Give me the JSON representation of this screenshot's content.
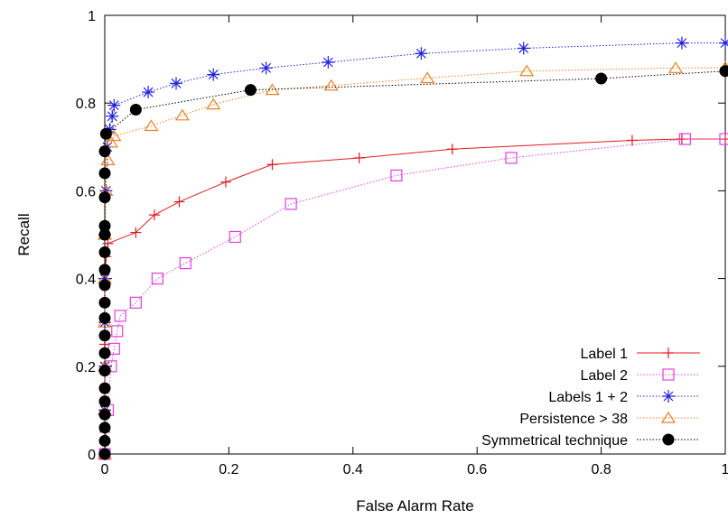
{
  "chart_data": {
    "type": "line",
    "xlabel": "False Alarm Rate",
    "ylabel": "Recall",
    "xlim": [
      0,
      1
    ],
    "ylim": [
      0,
      1
    ],
    "x_ticks": [
      "0",
      "0.2",
      "0.4",
      "0.6",
      "0.8",
      "1"
    ],
    "y_ticks": [
      "0",
      "0.2",
      "0.4",
      "0.6",
      "0.8",
      "1"
    ],
    "legend_position": "bottom-right",
    "grid": false,
    "series": [
      {
        "name": "Label 1",
        "color": "#e41a1c",
        "marker": "plus",
        "line": "solid",
        "points": [
          [
            0,
            0
          ],
          [
            0,
            0.05
          ],
          [
            0,
            0.1
          ],
          [
            0,
            0.15
          ],
          [
            0,
            0.2
          ],
          [
            0,
            0.25
          ],
          [
            0,
            0.3
          ],
          [
            0,
            0.35
          ],
          [
            0,
            0.4
          ],
          [
            0.002,
            0.45
          ],
          [
            0.005,
            0.48
          ],
          [
            0.05,
            0.505
          ],
          [
            0.08,
            0.545
          ],
          [
            0.12,
            0.575
          ],
          [
            0.195,
            0.62
          ],
          [
            0.27,
            0.66
          ],
          [
            0.41,
            0.675
          ],
          [
            0.56,
            0.695
          ],
          [
            0.85,
            0.715
          ],
          [
            0.93,
            0.718
          ],
          [
            1.0,
            0.718
          ]
        ]
      },
      {
        "name": "Label 2",
        "color": "#e040e0",
        "marker": "square",
        "line": "dotted",
        "points": [
          [
            0,
            0
          ],
          [
            0.005,
            0.1
          ],
          [
            0.01,
            0.2
          ],
          [
            0.015,
            0.24
          ],
          [
            0.02,
            0.28
          ],
          [
            0.025,
            0.315
          ],
          [
            0.05,
            0.345
          ],
          [
            0.085,
            0.4
          ],
          [
            0.13,
            0.435
          ],
          [
            0.21,
            0.495
          ],
          [
            0.3,
            0.57
          ],
          [
            0.47,
            0.635
          ],
          [
            0.655,
            0.675
          ],
          [
            0.935,
            0.718
          ],
          [
            1.0,
            0.718
          ]
        ]
      },
      {
        "name": "Labels 1 + 2",
        "color": "#1f1fe0",
        "marker": "star",
        "line": "dotted",
        "points": [
          [
            0,
            0
          ],
          [
            0,
            0.1
          ],
          [
            0,
            0.2
          ],
          [
            0,
            0.3
          ],
          [
            0,
            0.4
          ],
          [
            0,
            0.5
          ],
          [
            0.002,
            0.6
          ],
          [
            0.004,
            0.7
          ],
          [
            0.008,
            0.74
          ],
          [
            0.012,
            0.77
          ],
          [
            0.015,
            0.795
          ],
          [
            0.07,
            0.825
          ],
          [
            0.115,
            0.845
          ],
          [
            0.175,
            0.865
          ],
          [
            0.26,
            0.88
          ],
          [
            0.36,
            0.893
          ],
          [
            0.51,
            0.913
          ],
          [
            0.675,
            0.925
          ],
          [
            0.93,
            0.937
          ],
          [
            1.0,
            0.937
          ]
        ]
      },
      {
        "name": "Persistence > 38",
        "color": "#f08020",
        "marker": "triangle",
        "line": "dotted",
        "points": [
          [
            0,
            0
          ],
          [
            0,
            0.1
          ],
          [
            0,
            0.2
          ],
          [
            0,
            0.3
          ],
          [
            0,
            0.4
          ],
          [
            0,
            0.5
          ],
          [
            0.002,
            0.6
          ],
          [
            0.005,
            0.67
          ],
          [
            0.01,
            0.71
          ],
          [
            0.015,
            0.725
          ],
          [
            0.075,
            0.748
          ],
          [
            0.125,
            0.772
          ],
          [
            0.175,
            0.797
          ],
          [
            0.27,
            0.83
          ],
          [
            0.365,
            0.84
          ],
          [
            0.52,
            0.857
          ],
          [
            0.68,
            0.873
          ],
          [
            0.92,
            0.88
          ],
          [
            1.0,
            0.881
          ]
        ]
      },
      {
        "name": "Symmetrical technique",
        "color": "#000000",
        "marker": "circle",
        "line": "dotted",
        "points": [
          [
            0,
            0.0
          ],
          [
            0,
            0.03
          ],
          [
            0,
            0.06
          ],
          [
            0,
            0.09
          ],
          [
            0,
            0.12
          ],
          [
            0,
            0.15
          ],
          [
            0,
            0.19
          ],
          [
            0,
            0.23
          ],
          [
            0,
            0.27
          ],
          [
            0,
            0.31
          ],
          [
            0,
            0.345
          ],
          [
            0,
            0.385
          ],
          [
            0,
            0.42
          ],
          [
            0,
            0.46
          ],
          [
            0,
            0.5
          ],
          [
            0,
            0.52
          ],
          [
            0,
            0.585
          ],
          [
            0,
            0.64
          ],
          [
            0,
            0.69
          ],
          [
            0.002,
            0.73
          ],
          [
            0.05,
            0.785
          ],
          [
            0.235,
            0.83
          ],
          [
            0.8,
            0.856
          ],
          [
            1.0,
            0.873
          ]
        ]
      }
    ]
  }
}
